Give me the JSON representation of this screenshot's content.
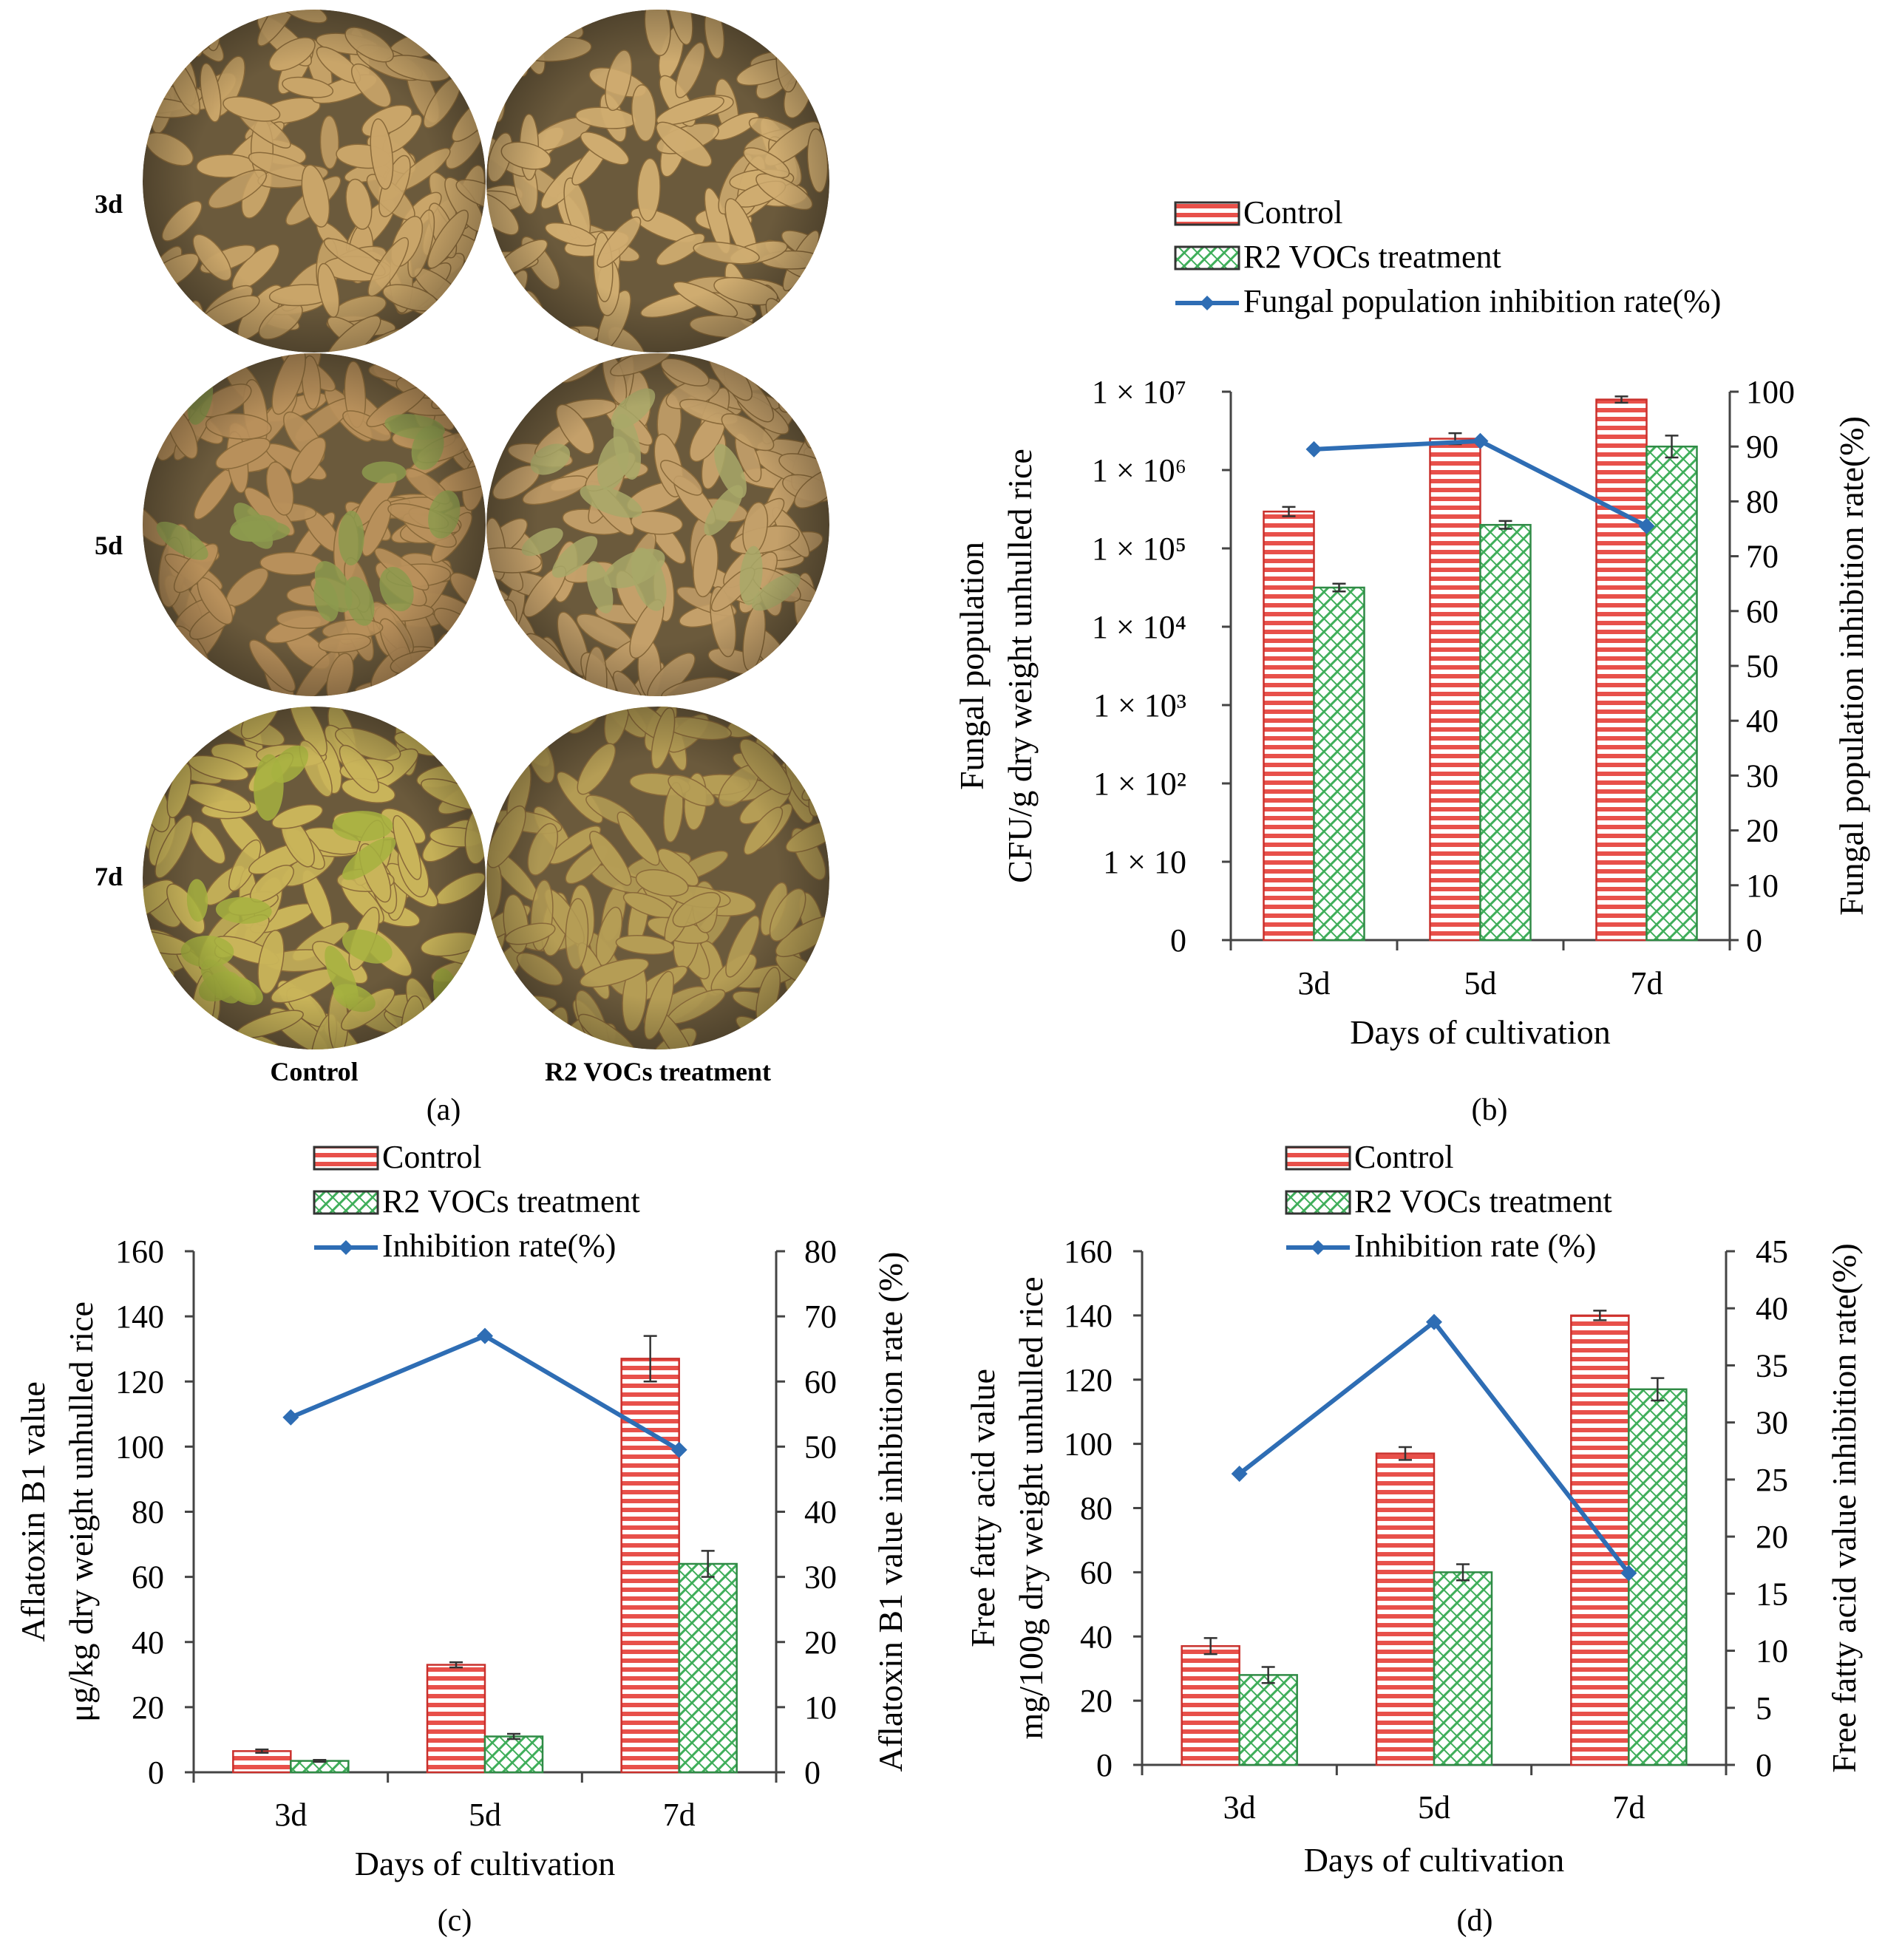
{
  "colors": {
    "control_fill": "#e8504a",
    "treatment_fill": "#3fae5a",
    "line": "#2e6db4",
    "axis": "#444444"
  },
  "panel_a": {
    "panel_label": "(a)",
    "row_labels": [
      "3d",
      "5d",
      "7d"
    ],
    "col_labels": [
      "Control",
      "R2 VOCs treatment"
    ],
    "photos": [
      {
        "row": "3d",
        "col": "Control",
        "grain": "#c9a569",
        "mold": ""
      },
      {
        "row": "3d",
        "col": "R2 VOCs treatment",
        "grain": "#cfac70",
        "mold": ""
      },
      {
        "row": "5d",
        "col": "Control",
        "grain": "#b8905b",
        "mold": "#8c9a4e"
      },
      {
        "row": "5d",
        "col": "R2 VOCs treatment",
        "grain": "#c4a06a",
        "mold": "#a8a868"
      },
      {
        "row": "7d",
        "col": "Control",
        "grain": "#c9b45a",
        "mold": "#a6b23f"
      },
      {
        "row": "7d",
        "col": "R2 VOCs treatment",
        "grain": "#b59d55",
        "mold": ""
      }
    ]
  },
  "chart_data": [
    {
      "id": "b",
      "type": "bar",
      "panel_label": "(b)",
      "scale": "log",
      "categories": [
        "3d",
        "5d",
        "7d"
      ],
      "xlabel": "Days of cultivation",
      "ylabel": [
        "Fungal population",
        "CFU/g dry weight unhulled rice"
      ],
      "y2label": "Fungal population inhibition rate(%)",
      "ylim_exponent": [
        0,
        7
      ],
      "y_ticks": [
        {
          "label": "0",
          "exp": 0
        },
        {
          "label": "1 × 10",
          "exp": 1
        },
        {
          "label": "1 × 10²",
          "exp": 2
        },
        {
          "label": "1 × 10³",
          "exp": 3
        },
        {
          "label": "1 × 10⁴",
          "exp": 4
        },
        {
          "label": "1 × 10⁵",
          "exp": 5
        },
        {
          "label": "1 × 10⁶",
          "exp": 6
        },
        {
          "label": "1 × 10⁷",
          "exp": 7
        }
      ],
      "y2lim": [
        0,
        100
      ],
      "y2_ticks": [
        0,
        10,
        20,
        30,
        40,
        50,
        60,
        70,
        80,
        90,
        100
      ],
      "series": [
        {
          "name": "Control",
          "kind": "bar",
          "values": [
            5.47,
            6.4,
            6.9
          ],
          "errors": [
            0.06,
            0.07,
            0.04
          ]
        },
        {
          "name": "R2 VOCs treatment",
          "kind": "bar",
          "values": [
            4.5,
            5.3,
            6.3
          ],
          "errors": [
            0.05,
            0.05,
            0.14
          ]
        },
        {
          "name": "Fungal population inhibition rate(%)",
          "kind": "line",
          "axis": "y2",
          "values": [
            89.5,
            91,
            75.5
          ]
        }
      ],
      "legend_labels": [
        "Control",
        "R2 VOCs treatment",
        "Fungal population inhibition rate(%)"
      ]
    },
    {
      "id": "c",
      "type": "bar",
      "panel_label": "(c)",
      "scale": "linear",
      "categories": [
        "3d",
        "5d",
        "7d"
      ],
      "xlabel": "Days of cultivation",
      "ylabel": [
        "Aflatoxin B1 value",
        "μg/kg dry weight unhulled rice"
      ],
      "y2label": "Aflatoxin B1 value inhibition rate (%)",
      "ylim": [
        0,
        160
      ],
      "y_ticks": [
        0,
        20,
        40,
        60,
        80,
        100,
        120,
        140,
        160
      ],
      "y2lim": [
        0,
        80
      ],
      "y2_ticks": [
        0,
        10,
        20,
        30,
        40,
        50,
        60,
        70,
        80
      ],
      "series": [
        {
          "name": "Control",
          "kind": "bar",
          "values": [
            6.5,
            33,
            127
          ],
          "errors": [
            0.5,
            0.8,
            7
          ]
        },
        {
          "name": "R2 VOCs treatment",
          "kind": "bar",
          "values": [
            3.5,
            11,
            64
          ],
          "errors": [
            0.3,
            0.8,
            4
          ]
        },
        {
          "name": "Inhibition rate(%)",
          "kind": "line",
          "axis": "y2",
          "values": [
            54.5,
            67,
            49.5
          ]
        }
      ],
      "legend_labels": [
        "Control",
        "R2 VOCs treatment",
        "Inhibition rate(%)"
      ]
    },
    {
      "id": "d",
      "type": "bar",
      "panel_label": "(d)",
      "scale": "linear",
      "categories": [
        "3d",
        "5d",
        "7d"
      ],
      "xlabel": "Days of cultivation",
      "ylabel": [
        "Free fatty acid value",
        "mg/100g dry weight unhulled rice"
      ],
      "y2label": "Free fatty acid value inhibition rate(%)",
      "ylim": [
        0,
        160
      ],
      "y_ticks": [
        0,
        20,
        40,
        60,
        80,
        100,
        120,
        140,
        160
      ],
      "y2lim": [
        0,
        45
      ],
      "y2_ticks": [
        0,
        5,
        10,
        15,
        20,
        25,
        30,
        35,
        40,
        45
      ],
      "series": [
        {
          "name": "Control",
          "kind": "bar",
          "values": [
            37,
            97,
            140
          ],
          "errors": [
            2.5,
            2,
            1.5
          ]
        },
        {
          "name": "R2 VOCs treatment",
          "kind": "bar",
          "values": [
            28,
            60,
            117
          ],
          "errors": [
            2.5,
            2.5,
            3.5
          ]
        },
        {
          "name": "Inhibition rate (%)",
          "kind": "line",
          "axis": "y2",
          "values": [
            25.5,
            38.8,
            16.8
          ]
        }
      ],
      "legend_labels": [
        "Control",
        "R2 VOCs treatment",
        "Inhibition rate (%)"
      ]
    }
  ]
}
